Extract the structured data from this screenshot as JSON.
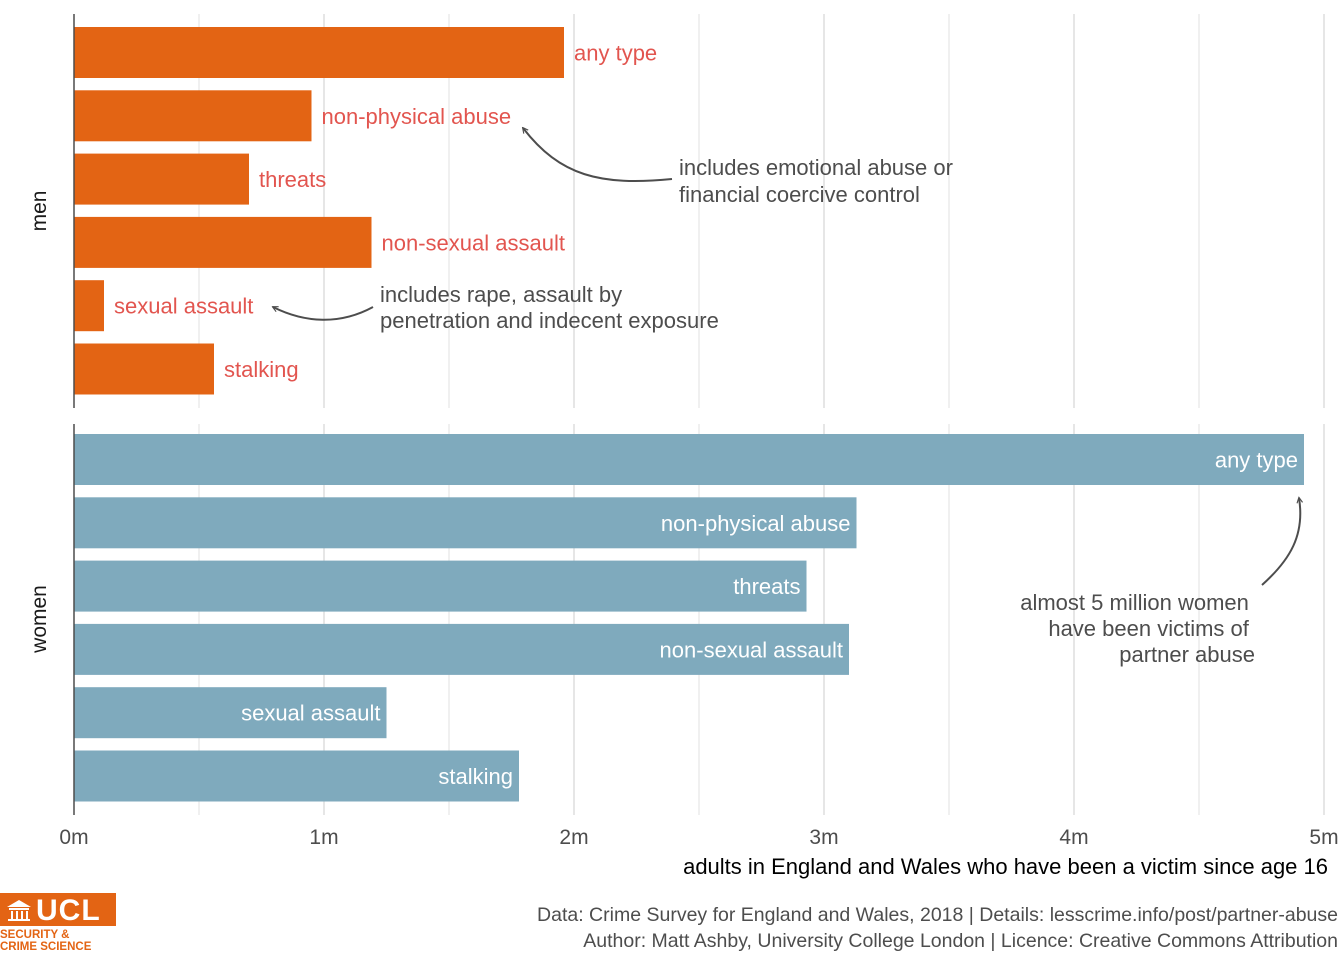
{
  "colors": {
    "men": "#e36414",
    "women": "#7faabd",
    "label_out": "#e2554f",
    "grid": "#e6e6e6",
    "annotation": "#4d4d4d"
  },
  "chart_data": {
    "type": "bar",
    "orientation": "horizontal",
    "xlabel": "adults in England and Wales who have been a victim since age 16",
    "xlim": [
      0,
      5000000
    ],
    "x_ticks": [
      0,
      1000000,
      2000000,
      3000000,
      4000000,
      5000000
    ],
    "x_tick_labels": [
      "0m",
      "1m",
      "2m",
      "3m",
      "4m",
      "5m"
    ],
    "categories": [
      "any type",
      "non-physical abuse",
      "threats",
      "non-sexual assault",
      "sexual assault",
      "stalking"
    ],
    "panels": [
      {
        "name": "men",
        "values": [
          1960000,
          950000,
          700000,
          1190000,
          120000,
          560000
        ],
        "label_position": "outside"
      },
      {
        "name": "women",
        "values": [
          4920000,
          3130000,
          2930000,
          3100000,
          1250000,
          1780000
        ],
        "label_position": "inside"
      }
    ],
    "annotations": [
      {
        "panel": "men",
        "target": "non-physical abuse",
        "lines": [
          "includes emotional abuse or",
          "financial coercive control"
        ]
      },
      {
        "panel": "men",
        "target": "sexual assault",
        "lines": [
          "includes rape, assault by",
          "penetration and indecent exposure"
        ]
      },
      {
        "panel": "women",
        "target": "any type",
        "lines": [
          "almost 5 million women",
          "have been victims of",
          "partner abuse"
        ]
      }
    ]
  },
  "footer": {
    "line1": "Data: Crime Survey for England and Wales, 2018 |  Details: lesscrime.info/post/partner-abuse",
    "line2": "Author: Matt Ashby, University College London |  Licence: Creative Commons Attribution"
  },
  "logo": {
    "text": "UCL",
    "subtitle_1": "SECURITY &",
    "subtitle_2": "CRIME SCIENCE"
  }
}
